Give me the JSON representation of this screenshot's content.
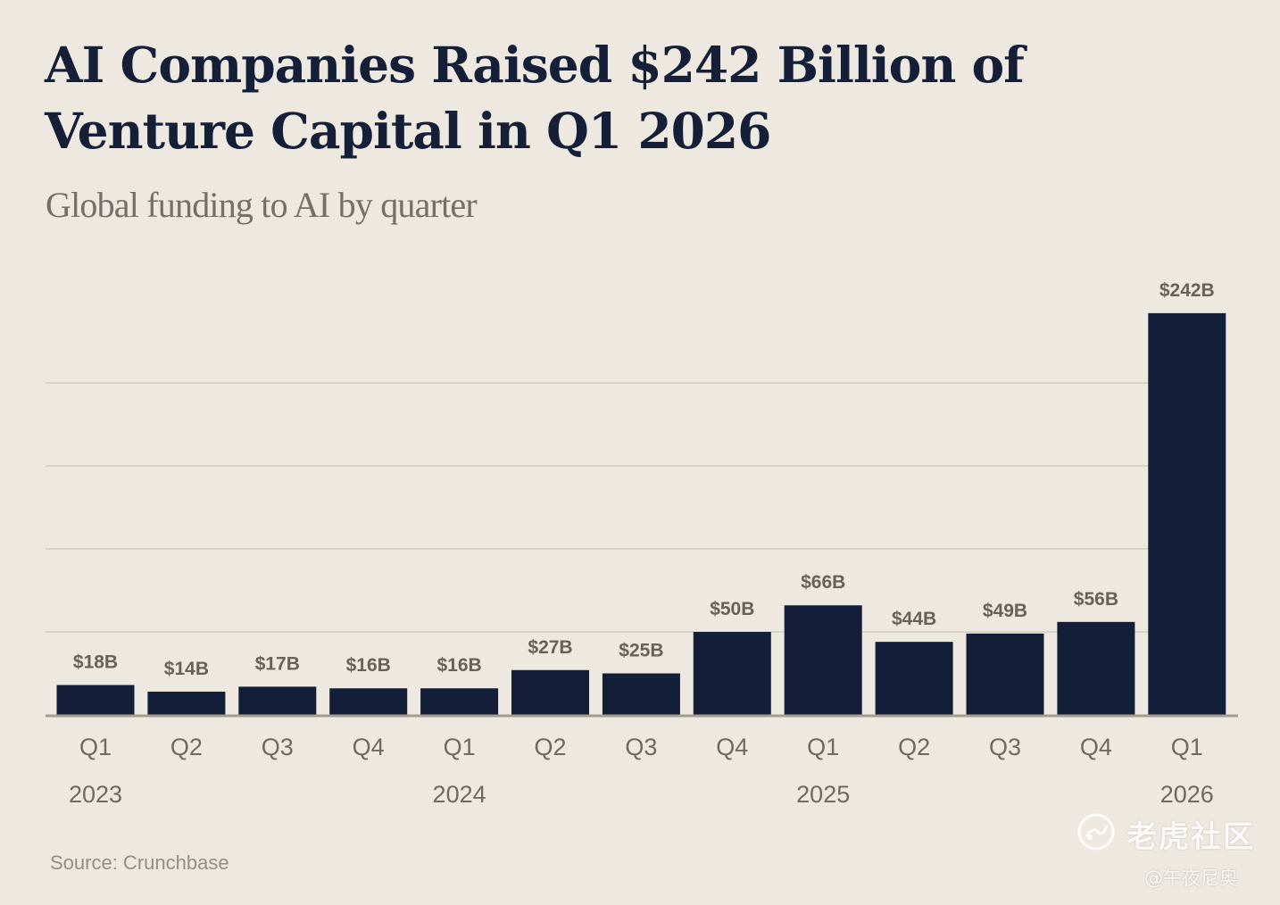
{
  "chart_data": {
    "type": "bar",
    "title": "AI Companies Raised $242 Billion of Venture Capital in Q1 2026",
    "subtitle": "Global funding to AI by quarter",
    "categories": [
      "Q1",
      "Q2",
      "Q3",
      "Q4",
      "Q1",
      "Q2",
      "Q3",
      "Q4",
      "Q1",
      "Q2",
      "Q3",
      "Q4",
      "Q1"
    ],
    "year_groups": [
      {
        "label": "2023",
        "category_index": 0
      },
      {
        "label": "2024",
        "category_index": 4
      },
      {
        "label": "2025",
        "category_index": 8
      },
      {
        "label": "2026",
        "category_index": 12
      }
    ],
    "values": [
      18,
      14,
      17,
      16,
      16,
      27,
      25,
      50,
      66,
      44,
      49,
      56,
      242
    ],
    "value_labels": [
      "$18B",
      "$14B",
      "$17B",
      "$16B",
      "$16B",
      "$27B",
      "$25B",
      "$50B",
      "$66B",
      "$44B",
      "$49B",
      "$56B",
      "$242B"
    ],
    "units": "billions USD",
    "xlabel": "",
    "ylabel": "",
    "ylim": [
      0,
      250
    ],
    "gridlines": [
      50,
      100,
      150,
      200
    ],
    "grid": true,
    "legend": "none",
    "source": "Source: Crunchbase",
    "colors": {
      "background": "#ede9e1",
      "bar": "#131f38",
      "title": "#152038",
      "subtitle": "#737069",
      "value_label": "#66625a",
      "tick_label": "#6e6a62",
      "grid": "#d9d4c4",
      "baseline": "#a39c8f",
      "source": "#958d80"
    }
  },
  "watermark": {
    "brand": "老虎社区",
    "handle": "@午夜尼奥"
  }
}
